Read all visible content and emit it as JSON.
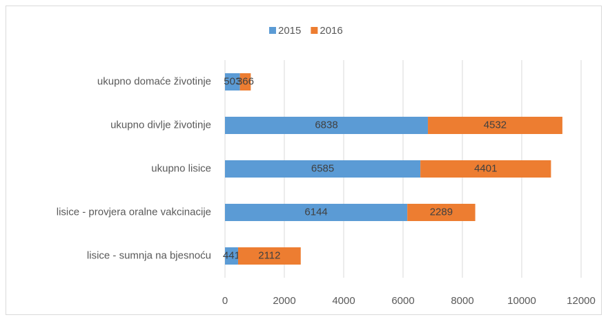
{
  "chart_data": {
    "type": "bar",
    "orientation": "horizontal",
    "stacked": true,
    "categories": [
      "ukupno domaće životinje",
      "ukupno divlje životinje",
      "ukupno lisice",
      "lisice - provjera oralne vakcinacije",
      "lisice - sumnja na bjesnoću"
    ],
    "series": [
      {
        "name": "2015",
        "color": "#5b9bd5",
        "values": [
          503,
          6838,
          6585,
          6144,
          441
        ]
      },
      {
        "name": "2016",
        "color": "#ed7d31",
        "values": [
          366,
          4532,
          4401,
          2289,
          2112
        ]
      }
    ],
    "xlim": [
      0,
      12000
    ],
    "xticks": [
      0,
      2000,
      4000,
      6000,
      8000,
      10000,
      12000
    ],
    "grid": true,
    "legend": "top"
  }
}
